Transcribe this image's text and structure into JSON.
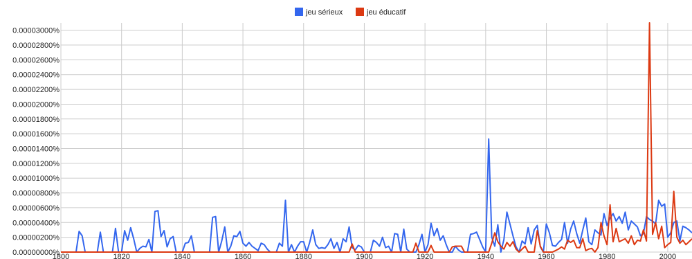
{
  "chart_data": {
    "type": "line",
    "title": "",
    "xlabel": "",
    "ylabel": "",
    "xlim": [
      1800,
      2008
    ],
    "ylim": [
      0,
      3.1e-05
    ],
    "grid": true,
    "legend_placement": "top-center",
    "y_ticks": [
      "0.00000000%",
      "0.00000200%",
      "0.00000400%",
      "0.00000600%",
      "0.00000800%",
      "0.00001000%",
      "0.00001200%",
      "0.00001400%",
      "0.00001600%",
      "0.00001800%",
      "0.00002000%",
      "0.00002200%",
      "0.00002400%",
      "0.00002600%",
      "0.00002800%",
      "0.00003000%"
    ],
    "y_tick_values": [
      0,
      2e-06,
      4e-06,
      6e-06,
      8e-06,
      1e-05,
      1.2e-05,
      1.4e-05,
      1.6e-05,
      1.8e-05,
      2e-05,
      2.2e-05,
      2.4e-05,
      2.6e-05,
      2.8e-05,
      3e-05
    ],
    "x_ticks": [
      "1800",
      "1820",
      "1840",
      "1860",
      "1880",
      "1900",
      "1920",
      "1940",
      "1960",
      "1980",
      "2000"
    ],
    "x_tick_values": [
      1800,
      1820,
      1840,
      1860,
      1880,
      1900,
      1920,
      1940,
      1960,
      1980,
      2000
    ],
    "series": [
      {
        "name": "jeu sérieux",
        "color": "#3366ee",
        "points": [
          [
            1800,
            0
          ],
          [
            1805,
            0
          ],
          [
            1806,
            2.8e-06
          ],
          [
            1807,
            2.2e-06
          ],
          [
            1808,
            0
          ],
          [
            1812,
            0
          ],
          [
            1813,
            2.7e-06
          ],
          [
            1814,
            0
          ],
          [
            1817,
            0
          ],
          [
            1818,
            3.2e-06
          ],
          [
            1819,
            0
          ],
          [
            1820,
            0
          ],
          [
            1821,
            2.9e-06
          ],
          [
            1822,
            1.6e-06
          ],
          [
            1823,
            3.3e-06
          ],
          [
            1824,
            1.8e-06
          ],
          [
            1825,
            0
          ],
          [
            1826,
            5e-07
          ],
          [
            1827,
            8e-07
          ],
          [
            1828,
            7e-07
          ],
          [
            1829,
            1.7e-06
          ],
          [
            1830,
            0
          ],
          [
            1831,
            5.5e-06
          ],
          [
            1832,
            5.6e-06
          ],
          [
            1833,
            2.1e-06
          ],
          [
            1834,
            2.9e-06
          ],
          [
            1835,
            7e-07
          ],
          [
            1836,
            1.8e-06
          ],
          [
            1837,
            2.1e-06
          ],
          [
            1838,
            0
          ],
          [
            1840,
            0
          ],
          [
            1841,
            1.2e-06
          ],
          [
            1842,
            1.3e-06
          ],
          [
            1843,
            2.2e-06
          ],
          [
            1844,
            0
          ],
          [
            1849,
            0
          ],
          [
            1850,
            4.7e-06
          ],
          [
            1851,
            4.8e-06
          ],
          [
            1852,
            0
          ],
          [
            1853,
            1.5e-06
          ],
          [
            1854,
            3.4e-06
          ],
          [
            1855,
            0
          ],
          [
            1856,
            8e-07
          ],
          [
            1857,
            2.2e-06
          ],
          [
            1858,
            2.1e-06
          ],
          [
            1859,
            2.8e-06
          ],
          [
            1860,
            1.2e-06
          ],
          [
            1861,
            8e-07
          ],
          [
            1862,
            1.3e-06
          ],
          [
            1863,
            8e-07
          ],
          [
            1864,
            5e-07
          ],
          [
            1865,
            2e-07
          ],
          [
            1866,
            1.2e-06
          ],
          [
            1867,
            1e-06
          ],
          [
            1868,
            4e-07
          ],
          [
            1869,
            0
          ],
          [
            1871,
            0
          ],
          [
            1872,
            1.2e-06
          ],
          [
            1873,
            8e-07
          ],
          [
            1874,
            7e-06
          ],
          [
            1875,
            0
          ],
          [
            1876,
            1e-06
          ],
          [
            1877,
            0
          ],
          [
            1878,
            8e-07
          ],
          [
            1879,
            1.4e-06
          ],
          [
            1880,
            1.4e-06
          ],
          [
            1881,
            0
          ],
          [
            1882,
            1.3e-06
          ],
          [
            1883,
            3e-06
          ],
          [
            1884,
            1e-06
          ],
          [
            1885,
            5e-07
          ],
          [
            1886,
            6e-07
          ],
          [
            1887,
            5e-07
          ],
          [
            1888,
            1e-06
          ],
          [
            1889,
            1.8e-06
          ],
          [
            1890,
            5e-07
          ],
          [
            1891,
            1.3e-06
          ],
          [
            1892,
            0
          ],
          [
            1893,
            1.8e-06
          ],
          [
            1894,
            1.4e-06
          ],
          [
            1895,
            3.4e-06
          ],
          [
            1896,
            6e-07
          ],
          [
            1897,
            3e-07
          ],
          [
            1898,
            9e-07
          ],
          [
            1899,
            7e-07
          ],
          [
            1900,
            0
          ],
          [
            1902,
            0
          ],
          [
            1903,
            1.6e-06
          ],
          [
            1904,
            1.3e-06
          ],
          [
            1905,
            8e-07
          ],
          [
            1906,
            2e-06
          ],
          [
            1907,
            6e-07
          ],
          [
            1908,
            8e-07
          ],
          [
            1909,
            0
          ],
          [
            1910,
            2.5e-06
          ],
          [
            1911,
            2.4e-06
          ],
          [
            1912,
            0
          ],
          [
            1913,
            3.1e-06
          ],
          [
            1914,
            4e-07
          ],
          [
            1915,
            0
          ],
          [
            1917,
            0
          ],
          [
            1918,
            1e-06
          ],
          [
            1919,
            2.4e-06
          ],
          [
            1920,
            0
          ],
          [
            1921,
            1e-06
          ],
          [
            1922,
            3.9e-06
          ],
          [
            1923,
            2.2e-06
          ],
          [
            1924,
            3.2e-06
          ],
          [
            1925,
            1.6e-06
          ],
          [
            1926,
            2.2e-06
          ],
          [
            1927,
            1e-06
          ],
          [
            1928,
            0
          ],
          [
            1929,
            0
          ],
          [
            1930,
            8e-07
          ],
          [
            1931,
            3e-07
          ],
          [
            1932,
            0
          ],
          [
            1934,
            0
          ],
          [
            1935,
            2.4e-06
          ],
          [
            1936,
            2.5e-06
          ],
          [
            1937,
            2.7e-06
          ],
          [
            1938,
            1.7e-06
          ],
          [
            1939,
            7e-07
          ],
          [
            1940,
            0
          ],
          [
            1941,
            1.53e-05
          ],
          [
            1942,
            2e-06
          ],
          [
            1943,
            8e-07
          ],
          [
            1944,
            3.7e-06
          ],
          [
            1945,
            0
          ],
          [
            1946,
            1.7e-06
          ],
          [
            1947,
            5.4e-06
          ],
          [
            1948,
            3.8e-06
          ],
          [
            1949,
            2.2e-06
          ],
          [
            1950,
            7e-07
          ],
          [
            1951,
            0
          ],
          [
            1952,
            1.5e-06
          ],
          [
            1953,
            1.1e-06
          ],
          [
            1954,
            3.3e-06
          ],
          [
            1955,
            1.1e-06
          ],
          [
            1956,
            3e-06
          ],
          [
            1957,
            3.6e-06
          ],
          [
            1958,
            7e-07
          ],
          [
            1959,
            0
          ],
          [
            1960,
            3.8e-06
          ],
          [
            1961,
            2.6e-06
          ],
          [
            1962,
            9e-07
          ],
          [
            1963,
            8e-07
          ],
          [
            1964,
            1.3e-06
          ],
          [
            1965,
            1.7e-06
          ],
          [
            1966,
            4e-06
          ],
          [
            1967,
            1.2e-06
          ],
          [
            1968,
            3.1e-06
          ],
          [
            1969,
            4.2e-06
          ],
          [
            1970,
            2.5e-06
          ],
          [
            1971,
            1.2e-06
          ],
          [
            1972,
            3e-06
          ],
          [
            1973,
            4.6e-06
          ],
          [
            1974,
            1.4e-06
          ],
          [
            1975,
            1e-06
          ],
          [
            1976,
            3e-06
          ],
          [
            1977,
            2.6e-06
          ],
          [
            1978,
            2.3e-06
          ],
          [
            1979,
            5.2e-06
          ],
          [
            1980,
            3.6e-06
          ],
          [
            1981,
            4.6e-06
          ],
          [
            1982,
            5.2e-06
          ],
          [
            1983,
            4.2e-06
          ],
          [
            1984,
            4.8e-06
          ],
          [
            1985,
            3.9e-06
          ],
          [
            1986,
            5.4e-06
          ],
          [
            1987,
            3e-06
          ],
          [
            1988,
            4.2e-06
          ],
          [
            1989,
            3.8e-06
          ],
          [
            1990,
            3.4e-06
          ],
          [
            1991,
            2.2e-06
          ],
          [
            1992,
            2.5e-06
          ],
          [
            1993,
            4.8e-06
          ],
          [
            1994,
            4.4e-06
          ],
          [
            1995,
            4.2e-06
          ],
          [
            1996,
            3.8e-06
          ],
          [
            1997,
            7e-06
          ],
          [
            1998,
            6.2e-06
          ],
          [
            1999,
            6.5e-06
          ],
          [
            2000,
            2e-06
          ],
          [
            2001,
            2.6e-06
          ],
          [
            2002,
            4e-06
          ],
          [
            2003,
            4.2e-06
          ],
          [
            2004,
            1.5e-06
          ],
          [
            2005,
            3.5e-06
          ],
          [
            2006,
            3.3e-06
          ],
          [
            2007,
            3e-06
          ],
          [
            2008,
            2.6e-06
          ]
        ]
      },
      {
        "name": "jeu éducatif",
        "color": "#dc3912",
        "points": [
          [
            1800,
            0
          ],
          [
            1895,
            0
          ],
          [
            1896,
            1.1e-06
          ],
          [
            1897,
            0
          ],
          [
            1916,
            0
          ],
          [
            1917,
            1.2e-06
          ],
          [
            1918,
            0
          ],
          [
            1921,
            0
          ],
          [
            1922,
            9e-07
          ],
          [
            1923,
            0
          ],
          [
            1928,
            0
          ],
          [
            1929,
            7e-07
          ],
          [
            1930,
            8e-07
          ],
          [
            1932,
            8e-07
          ],
          [
            1933,
            0
          ],
          [
            1941,
            0
          ],
          [
            1942,
            1.2e-06
          ],
          [
            1943,
            2.6e-06
          ],
          [
            1944,
            1.4e-06
          ],
          [
            1945,
            8e-07
          ],
          [
            1946,
            4e-07
          ],
          [
            1947,
            1.3e-06
          ],
          [
            1948,
            8e-07
          ],
          [
            1949,
            1.4e-06
          ],
          [
            1950,
            4e-07
          ],
          [
            1951,
            0
          ],
          [
            1953,
            8e-07
          ],
          [
            1954,
            0
          ],
          [
            1956,
            0
          ],
          [
            1957,
            2.9e-06
          ],
          [
            1958,
            8e-07
          ],
          [
            1959,
            0
          ],
          [
            1962,
            0
          ],
          [
            1963,
            2e-07
          ],
          [
            1964,
            4e-07
          ],
          [
            1965,
            7e-07
          ],
          [
            1966,
            4e-07
          ],
          [
            1967,
            1.6e-06
          ],
          [
            1968,
            1.3e-06
          ],
          [
            1969,
            1.6e-06
          ],
          [
            1970,
            6e-07
          ],
          [
            1971,
            6e-07
          ],
          [
            1972,
            1.8e-06
          ],
          [
            1973,
            2e-07
          ],
          [
            1974,
            4e-07
          ],
          [
            1975,
            5e-07
          ],
          [
            1976,
            0
          ],
          [
            1977,
            6e-07
          ],
          [
            1978,
            4e-06
          ],
          [
            1979,
            2.2e-06
          ],
          [
            1980,
            1e-06
          ],
          [
            1981,
            6.4e-06
          ],
          [
            1982,
            1.4e-06
          ],
          [
            1983,
            3.2e-06
          ],
          [
            1984,
            1.4e-06
          ],
          [
            1985,
            1.6e-06
          ],
          [
            1986,
            1.8e-06
          ],
          [
            1987,
            1.2e-06
          ],
          [
            1988,
            2.2e-06
          ],
          [
            1989,
            1e-06
          ],
          [
            1990,
            1.6e-06
          ],
          [
            1991,
            1.5e-06
          ],
          [
            1992,
            3e-06
          ],
          [
            1993,
            1.5e-06
          ],
          [
            1994,
            3.1e-05
          ],
          [
            1995,
            2.4e-06
          ],
          [
            1996,
            4e-06
          ],
          [
            1997,
            1.8e-06
          ],
          [
            1998,
            3.5e-06
          ],
          [
            1999,
            6e-07
          ],
          [
            2000,
            1e-06
          ],
          [
            2001,
            1.3e-06
          ],
          [
            2002,
            8.2e-06
          ],
          [
            2003,
            2e-06
          ],
          [
            2004,
            1.2e-06
          ],
          [
            2005,
            1.6e-06
          ],
          [
            2006,
            1e-06
          ],
          [
            2007,
            1.4e-06
          ],
          [
            2008,
            1.8e-06
          ]
        ]
      }
    ]
  }
}
